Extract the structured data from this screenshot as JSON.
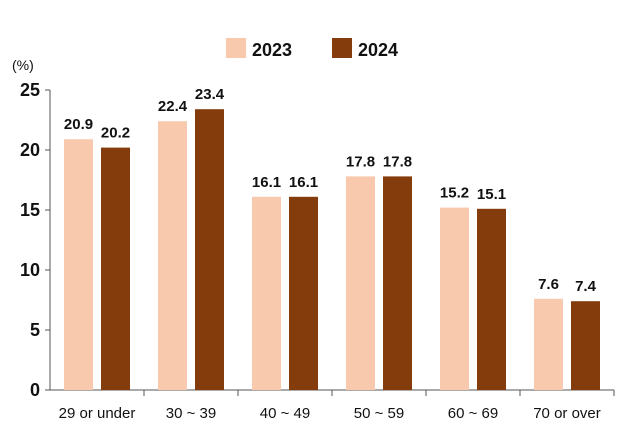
{
  "chart_data": {
    "type": "bar",
    "title": "",
    "xlabel": "",
    "ylabel": "(%)",
    "ylim": [
      0,
      25
    ],
    "yticks": [
      0,
      5,
      10,
      15,
      20,
      25
    ],
    "categories": [
      "29 or under",
      "30 ~ 39",
      "40 ~ 49",
      "50 ~ 59",
      "60 ~ 69",
      "70 or over"
    ],
    "series": [
      {
        "name": "2023",
        "color": "#F8C9AC",
        "values": [
          20.9,
          22.4,
          16.1,
          17.8,
          15.2,
          7.6
        ]
      },
      {
        "name": "2024",
        "color": "#843C0C",
        "values": [
          20.2,
          23.4,
          16.1,
          17.8,
          15.1,
          7.4
        ]
      }
    ],
    "value_labels": [
      [
        "20.9",
        "22.4",
        "16.1",
        "17.8",
        "15.2",
        "7.6"
      ],
      [
        "20.2",
        "23.4",
        "16.1",
        "17.8",
        "15.1",
        "7.4"
      ]
    ],
    "legend_position": "top-center",
    "grid": false
  }
}
